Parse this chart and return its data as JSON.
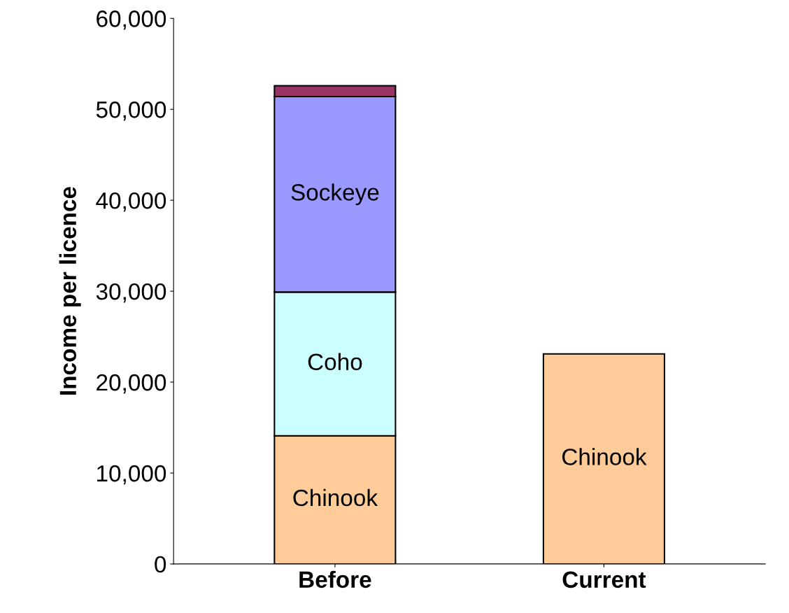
{
  "chart_data": {
    "type": "bar",
    "stacked": true,
    "ylabel": "Income per licence",
    "categories": [
      "Before",
      "Current"
    ],
    "series": [
      {
        "name": "Chinook",
        "color": "#ffcc99",
        "values": [
          14100,
          23100
        ]
      },
      {
        "name": "Coho",
        "color": "#ccffff",
        "values": [
          15800,
          null
        ]
      },
      {
        "name": "Sockeye",
        "color": "#9999ff",
        "values": [
          21500,
          null
        ]
      },
      {
        "color": "#993366",
        "values": [
          1200,
          null
        ]
      }
    ],
    "ylim": [
      0,
      60000
    ],
    "yticks": [
      0,
      {
        "value": 10000,
        "label": "10,000"
      },
      {
        "value": 20000,
        "label": "20,000"
      },
      {
        "value": 30000,
        "label": "30,000"
      },
      {
        "value": 40000,
        "label": "40,000"
      },
      {
        "value": 50000,
        "label": "50,000"
      },
      {
        "value": 60000,
        "label": "60,000"
      }
    ],
    "grid": false,
    "legend": false
  }
}
